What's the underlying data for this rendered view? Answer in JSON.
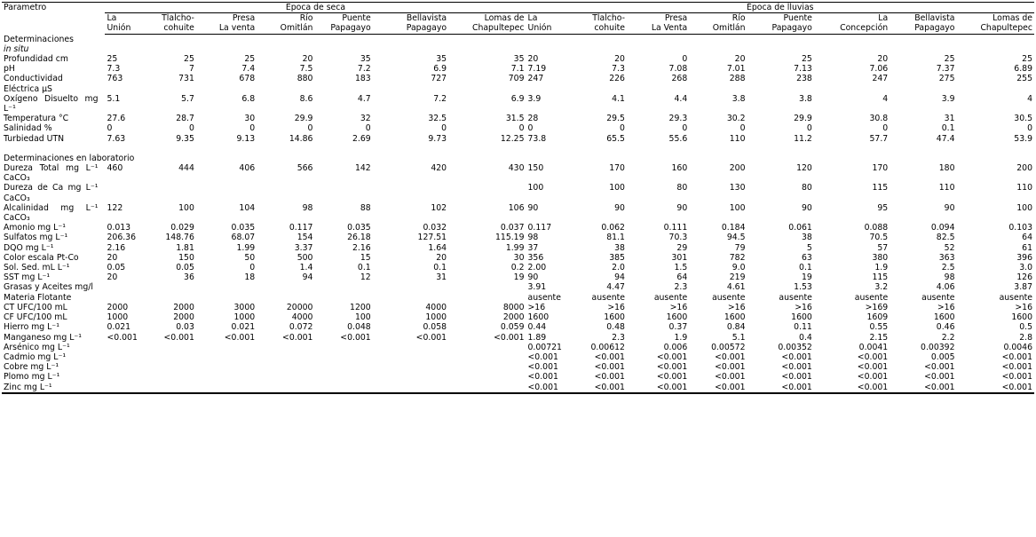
{
  "header": {
    "parameter": "Parametro",
    "groups": [
      {
        "title": "Epoca de seca",
        "sites": [
          [
            "La",
            "Unión"
          ],
          [
            "Tlalcho-",
            "cohuite"
          ],
          [
            "Presa",
            "La venta"
          ],
          [
            "Río",
            "Omitlán"
          ],
          [
            "Puente",
            "Papagayo"
          ],
          [
            "Bellavista",
            "Papagayo"
          ],
          [
            "Lomas de",
            "Chapultepec"
          ]
        ]
      },
      {
        "title": "Época de lluvias",
        "sites": [
          [
            "La",
            "Unión"
          ],
          [
            "Tlalcho-",
            "cohuite"
          ],
          [
            "Presa",
            "La Venta"
          ],
          [
            "Río",
            "Omitlán"
          ],
          [
            "Puente",
            "Papagayo"
          ],
          [
            "La",
            "Concepción"
          ],
          [
            "Bellavista",
            "Papagayo"
          ],
          [
            "Lomas de",
            "Chapultepec"
          ]
        ]
      }
    ]
  },
  "sections": [
    {
      "title": "Determinaciones",
      "subtitle": "in situ",
      "rows": [
        {
          "label": "Profundidad cm",
          "dry": [
            "25",
            "25",
            "25",
            "20",
            "35",
            "35",
            "35"
          ],
          "rainy": [
            "20",
            "20",
            "0",
            "20",
            "25",
            "20",
            "25",
            "25"
          ]
        },
        {
          "label": "pH",
          "dry": [
            "7.3",
            "7",
            "7.4",
            "7.5",
            "7.2",
            "6.9",
            "7.1"
          ],
          "rainy": [
            "7.19",
            "7.3",
            "7.08",
            "7.01",
            "7.13",
            "7.06",
            "7.37",
            "6.89"
          ]
        },
        {
          "label": "Conductividad Eléctrica µS",
          "dry": [
            "763",
            "731",
            "678",
            "880",
            "183",
            "727",
            "709"
          ],
          "rainy": [
            "247",
            "226",
            "268",
            "288",
            "238",
            "247",
            "275",
            "255"
          ]
        },
        {
          "label": "Oxígeno Disuelto mg L⁻¹",
          "dry": [
            "5.1",
            "5.7",
            "6.8",
            "8.6",
            "4.7",
            "7.2",
            "6.9"
          ],
          "rainy": [
            "3.9",
            "4.1",
            "4.4",
            "3.8",
            "3.8",
            "4",
            "3.9",
            "4"
          ]
        },
        {
          "label": "Temperatura °C",
          "dry": [
            "27.6",
            "28.7",
            "30",
            "29.9",
            "32",
            "32.5",
            "31.5"
          ],
          "rainy": [
            "28",
            "29.5",
            "29.3",
            "30.2",
            "29.9",
            "30.8",
            "31",
            "30.5"
          ]
        },
        {
          "label": "Salinidad %",
          "dry": [
            "0",
            "0",
            "0",
            "0",
            "0",
            "0",
            "0"
          ],
          "rainy": [
            "0",
            "0",
            "0",
            "0",
            "0",
            "0",
            "0.1",
            "0"
          ]
        },
        {
          "label": "Turbiedad UTN",
          "dry": [
            "7.63",
            "9.35",
            "9.13",
            "14.86",
            "2.69",
            "9.73",
            "12.25"
          ],
          "rainy": [
            "73.8",
            "65.5",
            "55.6",
            "110",
            "11.2",
            "57.7",
            "47.4",
            "53.9"
          ]
        }
      ]
    },
    {
      "title": "Determinaciones en laboratorio",
      "rows": [
        {
          "label": "Dureza Total mg L⁻¹ CaCO₃",
          "dry": [
            "460",
            "444",
            "406",
            "566",
            "142",
            "420",
            "430"
          ],
          "rainy": [
            "150",
            "170",
            "160",
            "200",
            "120",
            "170",
            "180",
            "200"
          ]
        },
        {
          "label": "Dureza de Ca mg L⁻¹ CaCO₃",
          "dry": [
            null,
            null,
            null,
            null,
            null,
            null,
            null
          ],
          "rainy": [
            "100",
            "100",
            "80",
            "130",
            "80",
            "115",
            "110",
            "110"
          ]
        },
        {
          "label": "Alcalinidad mg L⁻¹ CaCO₃",
          "dry": [
            "122",
            "100",
            "104",
            "98",
            "88",
            "102",
            "106"
          ],
          "rainy": [
            "90",
            "90",
            "90",
            "100",
            "90",
            "95",
            "90",
            "100"
          ]
        },
        {
          "label": "Amonio mg L⁻¹",
          "dry": [
            "0.013",
            "0.029",
            "0.035",
            "0.117",
            "0.035",
            "0.032",
            "0.037"
          ],
          "rainy": [
            "0.117",
            "0.062",
            "0.111",
            "0.184",
            "0.061",
            "0.088",
            "0.094",
            "0.103"
          ]
        },
        {
          "label": "Sulfatos mg L⁻¹",
          "dry": [
            "206.36",
            "148.76",
            "68.07",
            "154",
            "26.18",
            "127.51",
            "115.19"
          ],
          "rainy": [
            "98",
            "81.1",
            "70.3",
            "94.5",
            "38",
            "70.5",
            "82.5",
            "64"
          ]
        },
        {
          "label": "DQO mg L⁻¹",
          "dry": [
            "2.16",
            "1.81",
            "1.99",
            "3.37",
            "2.16",
            "1.64",
            "1.99"
          ],
          "rainy": [
            "37",
            "38",
            "29",
            "79",
            "5",
            "57",
            "52",
            "61"
          ]
        },
        {
          "label": "Color escala Pt-Co",
          "dry": [
            "20",
            "150",
            "50",
            "500",
            "15",
            "20",
            "30"
          ],
          "rainy": [
            "356",
            "385",
            "301",
            "782",
            "63",
            "380",
            "363",
            "396"
          ]
        },
        {
          "label": "Sol. Sed. mL L⁻¹",
          "dry": [
            "0.05",
            "0.05",
            "0",
            "1.4",
            "0.1",
            "0.1",
            "0.2"
          ],
          "rainy": [
            "2.00",
            "2.0",
            "1.5",
            "9.0",
            "0.1",
            "1.9",
            "2.5",
            "3.0"
          ]
        },
        {
          "label": "SST mg L⁻¹",
          "dry": [
            "20",
            "36",
            "18",
            "94",
            "12",
            "31",
            "19"
          ],
          "rainy": [
            "90",
            "94",
            "64",
            "219",
            "19",
            "115",
            "98",
            "126"
          ]
        },
        {
          "label": "Grasas y Aceites mg/l",
          "dry": [
            null,
            null,
            null,
            null,
            null,
            null,
            null
          ],
          "rainy": [
            "3.91",
            "4.47",
            "2.3",
            "4.61",
            "1.53",
            "3.2",
            "4.06",
            "3.87"
          ]
        },
        {
          "label": "Materia Flotante",
          "dry": [
            null,
            null,
            null,
            null,
            null,
            null,
            null
          ],
          "rainy": [
            "ausente",
            "ausente",
            "ausente",
            "ausente",
            "ausente",
            "ausente",
            "ausente",
            "ausente"
          ]
        },
        {
          "label": "CT UFC/100 mL",
          "dry": [
            "2000",
            "2000",
            "3000",
            "20000",
            "1200",
            "4000",
            "8000"
          ],
          "rainy": [
            ">16",
            ">16",
            ">16",
            ">16",
            ">16",
            ">169",
            ">16",
            ">16"
          ]
        },
        {
          "label": "CF UFC/100 mL",
          "dry": [
            "1000",
            "2000",
            "1000",
            "4000",
            "100",
            "1000",
            "2000"
          ],
          "rainy": [
            "1600",
            "1600",
            "1600",
            "1600",
            "1600",
            "1609",
            "1600",
            "1600"
          ]
        },
        {
          "label": "Hierro mg L⁻¹",
          "dry": [
            "0.021",
            "0.03",
            "0.021",
            "0.072",
            "0.048",
            "0.058",
            "0.059"
          ],
          "rainy": [
            "0.44",
            "0.48",
            "0.37",
            "0.84",
            "0.11",
            "0.55",
            "0.46",
            "0.5"
          ]
        },
        {
          "label": "Manganeso mg L⁻¹",
          "dry": [
            "<0.001",
            "<0.001",
            "<0.001",
            "<0.001",
            "<0.001",
            "<0.001",
            "<0.001"
          ],
          "rainy": [
            "1.89",
            "2.3",
            "1.9",
            "5.1",
            "0.4",
            "2.15",
            "2.2",
            "2.8"
          ]
        },
        {
          "label": "Arsénico mg L⁻¹",
          "dry": [
            null,
            null,
            null,
            null,
            null,
            null,
            null
          ],
          "rainy": [
            "0.00721",
            "0.00612",
            "0.006",
            "0.00572",
            "0.00352",
            "0.0041",
            "0.00392",
            "0.0046"
          ]
        },
        {
          "label": "Cadmio mg L⁻¹",
          "dry": [
            null,
            null,
            null,
            null,
            null,
            null,
            null
          ],
          "rainy": [
            "<0.001",
            "<0.001",
            "<0.001",
            "<0.001",
            "<0.001",
            "<0.001",
            "0.005",
            "<0.001"
          ]
        },
        {
          "label": "Cobre mg L⁻¹",
          "dry": [
            null,
            null,
            null,
            null,
            null,
            null,
            null
          ],
          "rainy": [
            "<0.001",
            "<0.001",
            "<0.001",
            "<0.001",
            "<0.001",
            "<0.001",
            "<0.001",
            "<0.001"
          ]
        },
        {
          "label": "Plomo mg L⁻¹",
          "dry": [
            null,
            null,
            null,
            null,
            null,
            null,
            null
          ],
          "rainy": [
            "<0.001",
            "<0.001",
            "<0.001",
            "<0.001",
            "<0.001",
            "<0.001",
            "<0.001",
            "<0.001"
          ]
        },
        {
          "label": "Zinc mg L⁻¹",
          "dry": [
            null,
            null,
            null,
            null,
            null,
            null,
            null
          ],
          "rainy": [
            "<0.001",
            "<0.001",
            "<0.001",
            "<0.001",
            "<0.001",
            "<0.001",
            "<0.001",
            "<0.001"
          ]
        }
      ]
    }
  ]
}
